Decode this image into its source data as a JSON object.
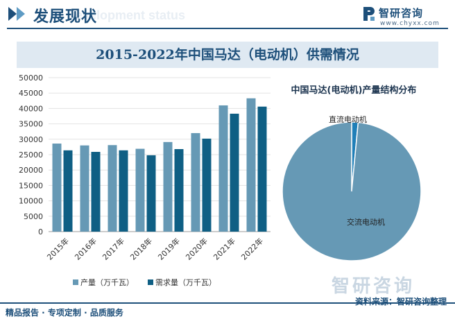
{
  "header": {
    "title": "发展现状",
    "subtitle": "Development status",
    "logo_name": "智研咨询",
    "logo_url": "www.chyxx.com"
  },
  "footer": {
    "left": "精品报告 · 专项定制 · 品质服务",
    "right": "资料来源：智研咨询整理",
    "watermark": "智研咨询"
  },
  "colors": {
    "production": "#6699b5",
    "demand": "#0f5f84",
    "ac_motor": "#6699b5",
    "dc_motor": "#1f7fb8",
    "brand": "#1d4f7a"
  },
  "chart_data": [
    {
      "type": "bar",
      "title": "2015-2022年中国马达（电动机）供需情况",
      "categories": [
        "2015年",
        "2016年",
        "2017年",
        "2018年",
        "2019年",
        "2020年",
        "2021年",
        "2022年"
      ],
      "series": [
        {
          "name": "产量（万千瓦）",
          "values": [
            28600,
            28000,
            28100,
            26900,
            29100,
            32000,
            41000,
            43300
          ]
        },
        {
          "name": "需求量（万千瓦）",
          "values": [
            26400,
            25900,
            26400,
            24800,
            26800,
            30200,
            38300,
            40600
          ]
        }
      ],
      "yticks": [
        "0",
        "5000",
        "10000",
        "15000",
        "20000",
        "25000",
        "30000",
        "35000",
        "40000",
        "45000",
        "50000"
      ],
      "ylim": [
        0,
        50000
      ],
      "legend_position": "bottom"
    },
    {
      "type": "pie",
      "title": "中国马达(电动机)产量结构分布",
      "labels": [
        "直流电动机",
        "交流电动机"
      ],
      "values": [
        1.5,
        98.5
      ]
    }
  ]
}
